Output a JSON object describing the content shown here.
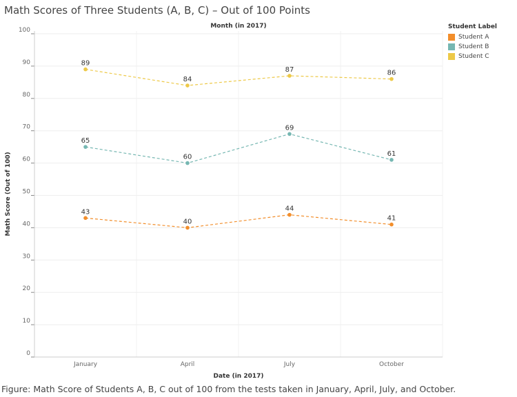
{
  "title": "Math Scores of Three Students (A, B, C) – Out of 100 Points",
  "caption": "Figure: Math Score of Students A, B, C out of 100 from the tests taken in January, April, July, and October.",
  "chart_data": {
    "type": "line",
    "title": "Math Scores of Three Students (A, B, C) – Out of 100 Points",
    "top_axis_label": "Month (in 2017)",
    "xlabel": "Date (in 2017)",
    "ylabel": "Math Score (Out of 100)",
    "categories": [
      "January",
      "April",
      "July",
      "October"
    ],
    "ylim": [
      0,
      100
    ],
    "yticks": [
      0,
      10,
      20,
      30,
      40,
      50,
      60,
      70,
      80,
      90,
      100
    ],
    "grid": true,
    "line_style": "dashed",
    "legend": {
      "title": "Student Label",
      "position": "right"
    },
    "series": [
      {
        "name": "Student A",
        "color": "#F28E2B",
        "values": [
          43,
          40,
          44,
          41
        ]
      },
      {
        "name": "Student B",
        "color": "#76B7B2",
        "values": [
          65,
          60,
          69,
          61
        ]
      },
      {
        "name": "Student C",
        "color": "#EDC948",
        "values": [
          89,
          84,
          87,
          86
        ]
      }
    ]
  }
}
